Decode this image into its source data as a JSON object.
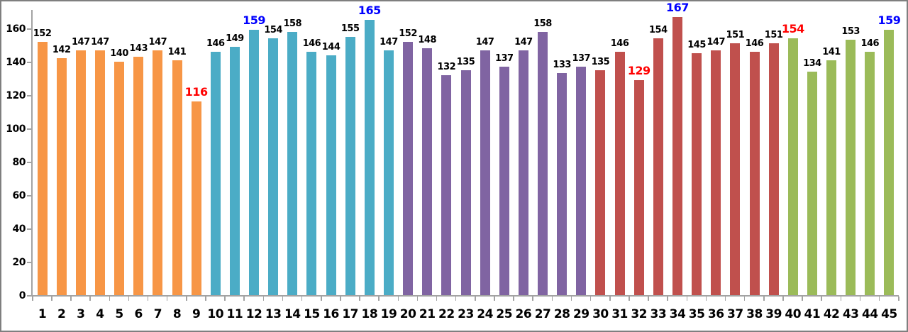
{
  "chart_data": {
    "type": "bar",
    "title": "",
    "xlabel": "",
    "ylabel": "",
    "categories": [
      "1",
      "2",
      "3",
      "4",
      "5",
      "6",
      "7",
      "8",
      "9",
      "10",
      "11",
      "12",
      "13",
      "14",
      "15",
      "16",
      "17",
      "18",
      "19",
      "20",
      "21",
      "22",
      "23",
      "24",
      "25",
      "26",
      "27",
      "28",
      "29",
      "30",
      "31",
      "32",
      "33",
      "34",
      "35",
      "36",
      "37",
      "38",
      "39",
      "40",
      "41",
      "42",
      "43",
      "44",
      "45"
    ],
    "values": [
      152,
      142,
      147,
      147,
      140,
      143,
      147,
      141,
      116,
      146,
      149,
      159,
      154,
      158,
      146,
      144,
      155,
      165,
      147,
      152,
      148,
      132,
      135,
      147,
      137,
      147,
      158,
      133,
      137,
      135,
      146,
      129,
      154,
      167,
      145,
      147,
      151,
      146,
      151,
      154,
      134,
      141,
      153,
      146,
      159
    ],
    "ylim": [
      0,
      175
    ],
    "yticks": [
      0,
      20,
      40,
      60,
      80,
      100,
      120,
      140,
      160
    ],
    "grid": false,
    "legend": "none",
    "data_labels": true,
    "color_groups": [
      {
        "name": "group-1",
        "from": 1,
        "to": 9,
        "color": "#F79646"
      },
      {
        "name": "group-2",
        "from": 10,
        "to": 19,
        "color": "#4BACC6"
      },
      {
        "name": "group-3",
        "from": 20,
        "to": 29,
        "color": "#8064A2"
      },
      {
        "name": "group-4",
        "from": 30,
        "to": 39,
        "color": "#C0504D"
      },
      {
        "name": "group-5",
        "from": 40,
        "to": 45,
        "color": "#9BBB59"
      }
    ],
    "value_label_colors": {
      "default": "#000000",
      "overrides": [
        {
          "category": "9",
          "color": "#FF0000"
        },
        {
          "category": "12",
          "color": "#0000FF"
        },
        {
          "category": "18",
          "color": "#0000FF"
        },
        {
          "category": "32",
          "color": "#FF0000"
        },
        {
          "category": "34",
          "color": "#0000FF"
        },
        {
          "category": "40",
          "color": "#FF0000"
        },
        {
          "category": "45",
          "color": "#0000FF"
        }
      ]
    },
    "axis_color": "#A3A3A3",
    "frame_border_color": "#7F7F7F",
    "background": "#FFFFFF"
  }
}
